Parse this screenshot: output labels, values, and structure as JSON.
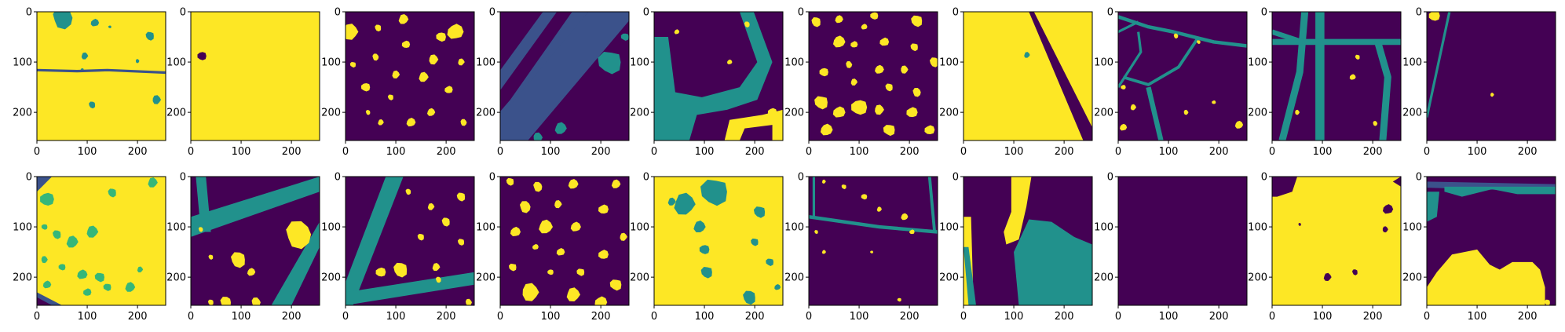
{
  "chart_data": {
    "type": "image-grid",
    "rows": 2,
    "cols": 10,
    "xticks": [
      "0",
      "100",
      "200"
    ],
    "yticks": [
      "0",
      "100",
      "200"
    ],
    "xlim": [
      0,
      256
    ],
    "ylim": [
      256,
      0
    ],
    "palette": {
      "bg": "#440154",
      "blue": "#3b528b",
      "teal": "#21918c",
      "green": "#35b779",
      "yellow": "#fde725"
    },
    "panels": [
      {
        "id": "r1c1"
      },
      {
        "id": "r1c2"
      },
      {
        "id": "r1c3"
      },
      {
        "id": "r1c4"
      },
      {
        "id": "r1c5"
      },
      {
        "id": "r1c6"
      },
      {
        "id": "r1c7"
      },
      {
        "id": "r1c8"
      },
      {
        "id": "r1c9"
      },
      {
        "id": "r1c10"
      },
      {
        "id": "r2c1"
      },
      {
        "id": "r2c2"
      },
      {
        "id": "r2c3"
      },
      {
        "id": "r2c4"
      },
      {
        "id": "r2c5"
      },
      {
        "id": "r2c6"
      },
      {
        "id": "r2c7"
      },
      {
        "id": "r2c8"
      },
      {
        "id": "r2c9"
      },
      {
        "id": "r2c10"
      }
    ]
  }
}
